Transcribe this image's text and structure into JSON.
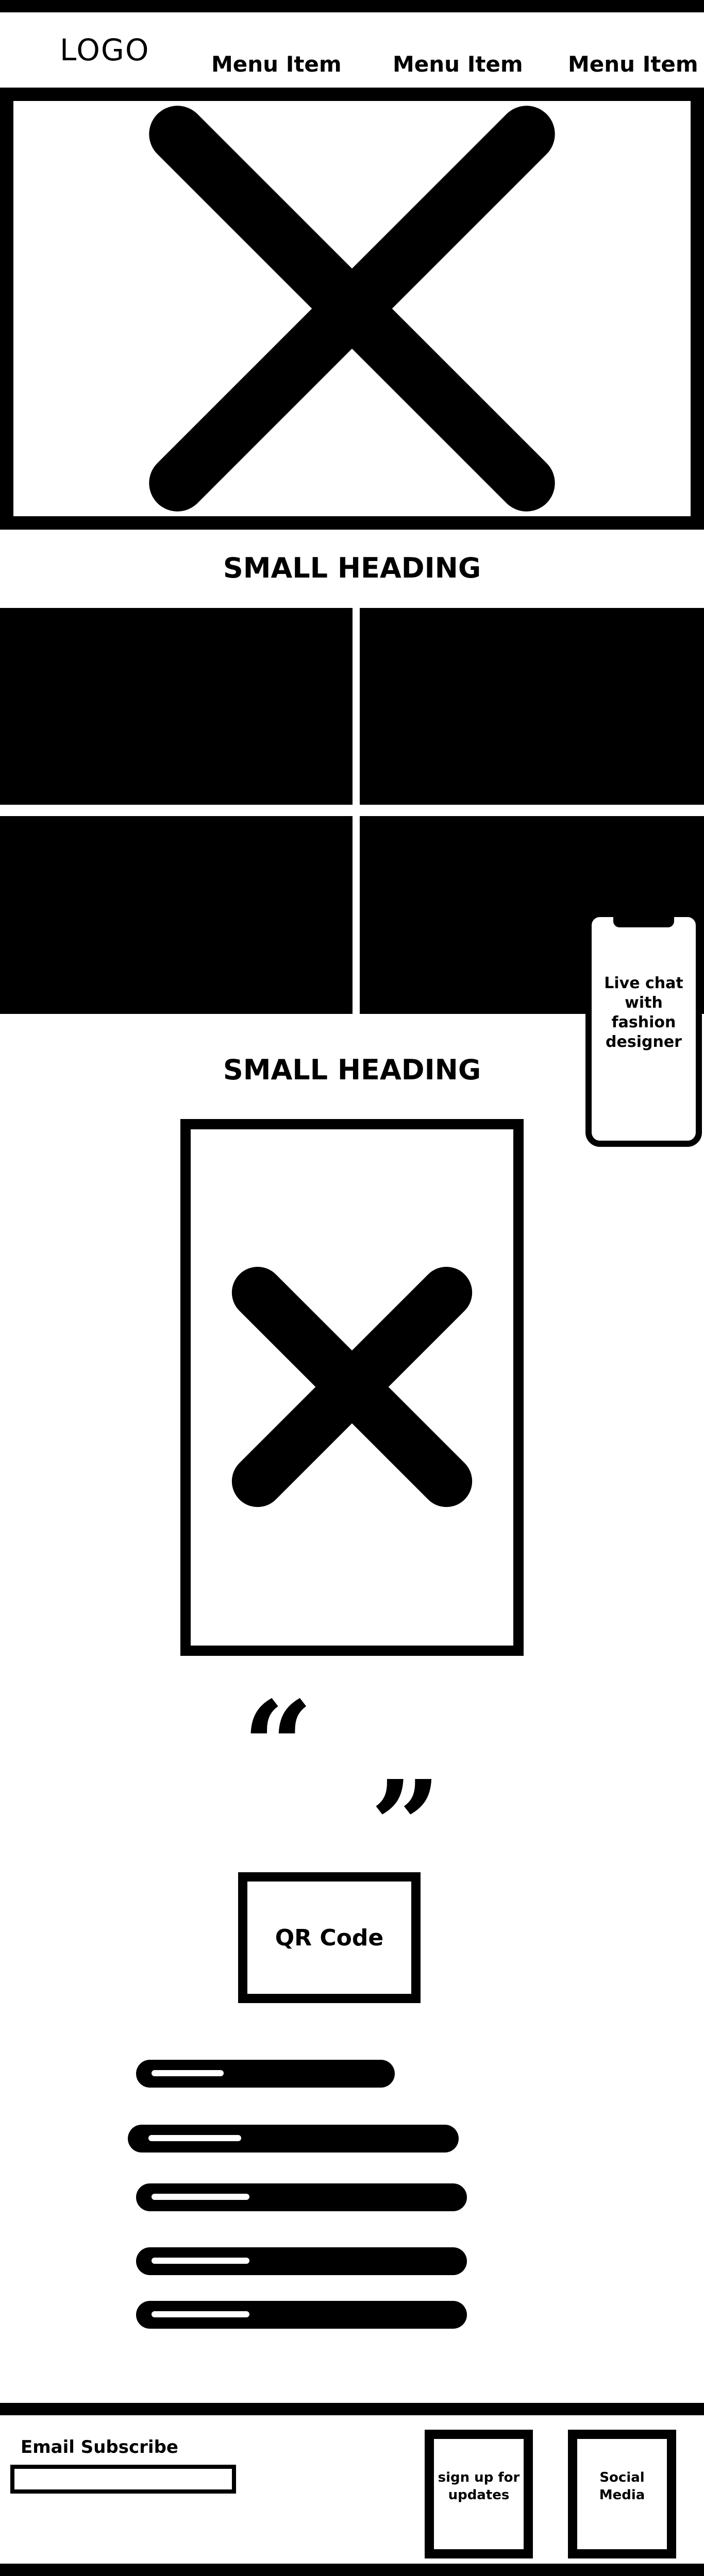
{
  "header": {
    "logo": "LOGO",
    "menu": [
      "Menu Item",
      "Menu Item",
      "Menu Item"
    ]
  },
  "hero": {
    "image": "image-placeholder"
  },
  "section1": {
    "heading": "SMALL HEADING"
  },
  "section2": {
    "heading": "SMALL HEADING"
  },
  "chat_widget": {
    "label": "Live chat with fashion designer"
  },
  "quote": {
    "open": "“",
    "close": "”"
  },
  "qr": {
    "label": "QR Code"
  },
  "footer": {
    "email_label": "Email Subscribe",
    "email_placeholder": "",
    "signup_label": "sign up for updates",
    "social_label": "Social Media"
  },
  "colors": {
    "foreground": "#000000",
    "background": "#ffffff"
  }
}
